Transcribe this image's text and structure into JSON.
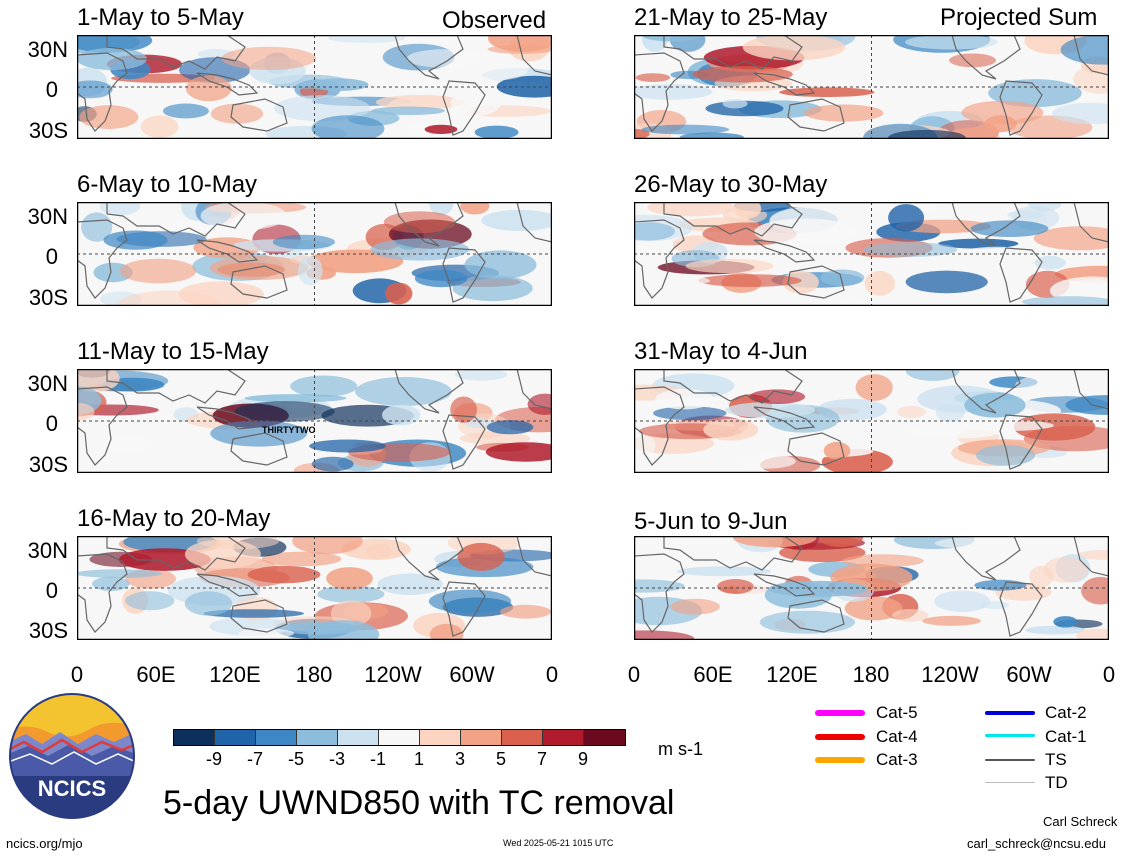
{
  "header": {
    "left_label": "Observed",
    "right_label": "Projected Sum"
  },
  "panels": {
    "left": [
      "1-May to 5-May",
      "6-May to 10-May",
      "11-May to 15-May",
      "16-May to 20-May"
    ],
    "right": [
      "21-May to 25-May",
      "26-May to 30-May",
      "31-May to 4-Jun",
      "5-Jun to 9-Jun"
    ]
  },
  "lat_labels": [
    "30N",
    "0",
    "30S"
  ],
  "lon_labels": [
    "0",
    "60E",
    "120E",
    "180",
    "120W",
    "60W",
    "0"
  ],
  "storm_label": "THIRTYTWO",
  "colorbar": {
    "ticks": [
      "-9",
      "-7",
      "-5",
      "-3",
      "-1",
      "1",
      "3",
      "5",
      "7",
      "9"
    ],
    "colors": [
      "#0d2f5c",
      "#1f63a8",
      "#3d88c4",
      "#8cbddc",
      "#cde2f0",
      "#f7f7f7",
      "#fbd5c2",
      "#f2a285",
      "#d9604d",
      "#b01c2e",
      "#6b0a1f"
    ],
    "units": "m s-1"
  },
  "legend": [
    {
      "label": "Cat-5",
      "color": "#ff00ff"
    },
    {
      "label": "Cat-4",
      "color": "#ee0000"
    },
    {
      "label": "Cat-3",
      "color": "#ffa500"
    },
    {
      "label": "Cat-2",
      "color": "#0000dd"
    },
    {
      "label": "Cat-1",
      "color": "#00e5ee"
    },
    {
      "label": "TS",
      "color": "#555555"
    },
    {
      "label": "TD",
      "color": "#bbbbbb"
    }
  ],
  "logo_text": "NCICS",
  "main_title": "5-day UWND850 with TC removal",
  "footer": {
    "url": "ncics.org/mjo",
    "timestamp": "Wed 2025-05-21 1015 UTC",
    "author": "Carl Schreck",
    "email": "carl_schreck@ncsu.edu"
  }
}
